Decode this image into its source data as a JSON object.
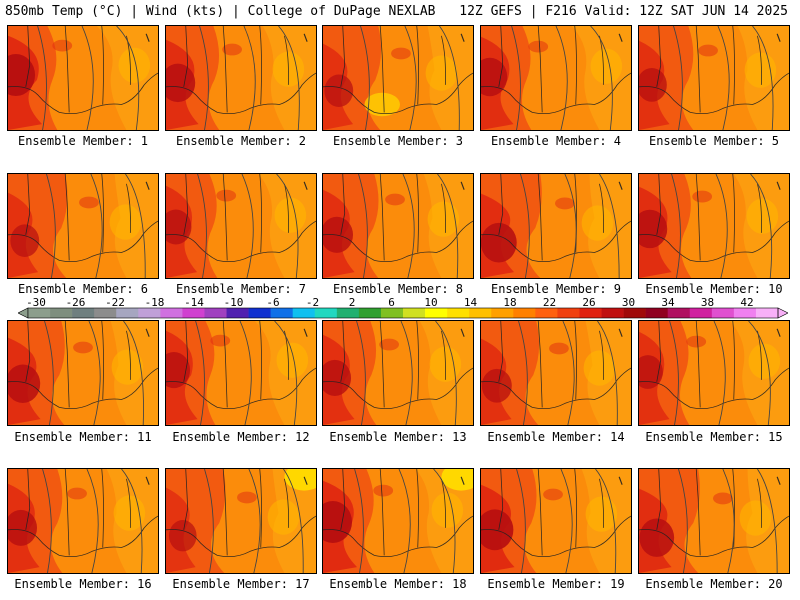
{
  "header": {
    "left": "850mb Temp (°C) | Wind (kts) | College of DuPage NEXLAB",
    "right": "12Z GEFS | F216 Valid: 12Z SAT JUN 14 2025"
  },
  "colorbar": {
    "labels": [
      "-30",
      "-26",
      "-22",
      "-18",
      "-14",
      "-10",
      "-6",
      "-2",
      "2",
      "6",
      "10",
      "14",
      "18",
      "22",
      "26",
      "30",
      "34",
      "38",
      "42"
    ],
    "colors": [
      "#8c9e8c",
      "#7e8e7e",
      "#6f7f7f",
      "#8c8c8c",
      "#a6a6c0",
      "#c0a0d8",
      "#d070e0",
      "#d040d0",
      "#a040c0",
      "#5020b0",
      "#1030d0",
      "#1070e8",
      "#10c0f0",
      "#20d8c0",
      "#20b070",
      "#30a030",
      "#80c020",
      "#d0e020",
      "#ffff00",
      "#ffe000",
      "#ffc000",
      "#ffa000",
      "#ff8000",
      "#ff6010",
      "#f04010",
      "#e02010",
      "#c01010",
      "#a00a0a",
      "#900020",
      "#b01060",
      "#d020a0",
      "#e050d0",
      "#f080f0",
      "#f8b0f8"
    ],
    "palette": {
      "dark_red": "#b81010",
      "red": "#e02a10",
      "red_orange": "#f25a10",
      "orange": "#fb8c0b",
      "light_orange": "#fca010",
      "amber": "#ffb800",
      "yellow": "#ffd800"
    }
  },
  "members": [
    {
      "label": "Ensemble Member: 1",
      "hot": 0.95
    },
    {
      "label": "Ensemble Member: 2",
      "hot": 0.8
    },
    {
      "label": "Ensemble Member: 3",
      "hot": 0.55
    },
    {
      "label": "Ensemble Member: 4",
      "hot": 0.8
    },
    {
      "label": "Ensemble Member: 5",
      "hot": 0.6
    },
    {
      "label": "Ensemble Member: 6",
      "hot": 0.55
    },
    {
      "label": "Ensemble Member: 7",
      "hot": 0.65
    },
    {
      "label": "Ensemble Member: 8",
      "hot": 0.7
    },
    {
      "label": "Ensemble Member: 9",
      "hot": 0.85
    },
    {
      "label": "Ensemble Member: 10",
      "hot": 0.8
    },
    {
      "label": "Ensemble Member: 11",
      "hot": 0.8
    },
    {
      "label": "Ensemble Member: 12",
      "hot": 0.7
    },
    {
      "label": "Ensemble Member: 13",
      "hot": 0.7
    },
    {
      "label": "Ensemble Member: 14",
      "hot": 0.6
    },
    {
      "label": "Ensemble Member: 15",
      "hot": 0.6
    },
    {
      "label": "Ensemble Member: 16",
      "hot": 0.7
    },
    {
      "label": "Ensemble Member: 17",
      "hot": 0.5
    },
    {
      "label": "Ensemble Member: 18",
      "hot": 0.95
    },
    {
      "label": "Ensemble Member: 19",
      "hot": 0.9
    },
    {
      "label": "Ensemble Member: 20",
      "hot": 0.8
    }
  ]
}
